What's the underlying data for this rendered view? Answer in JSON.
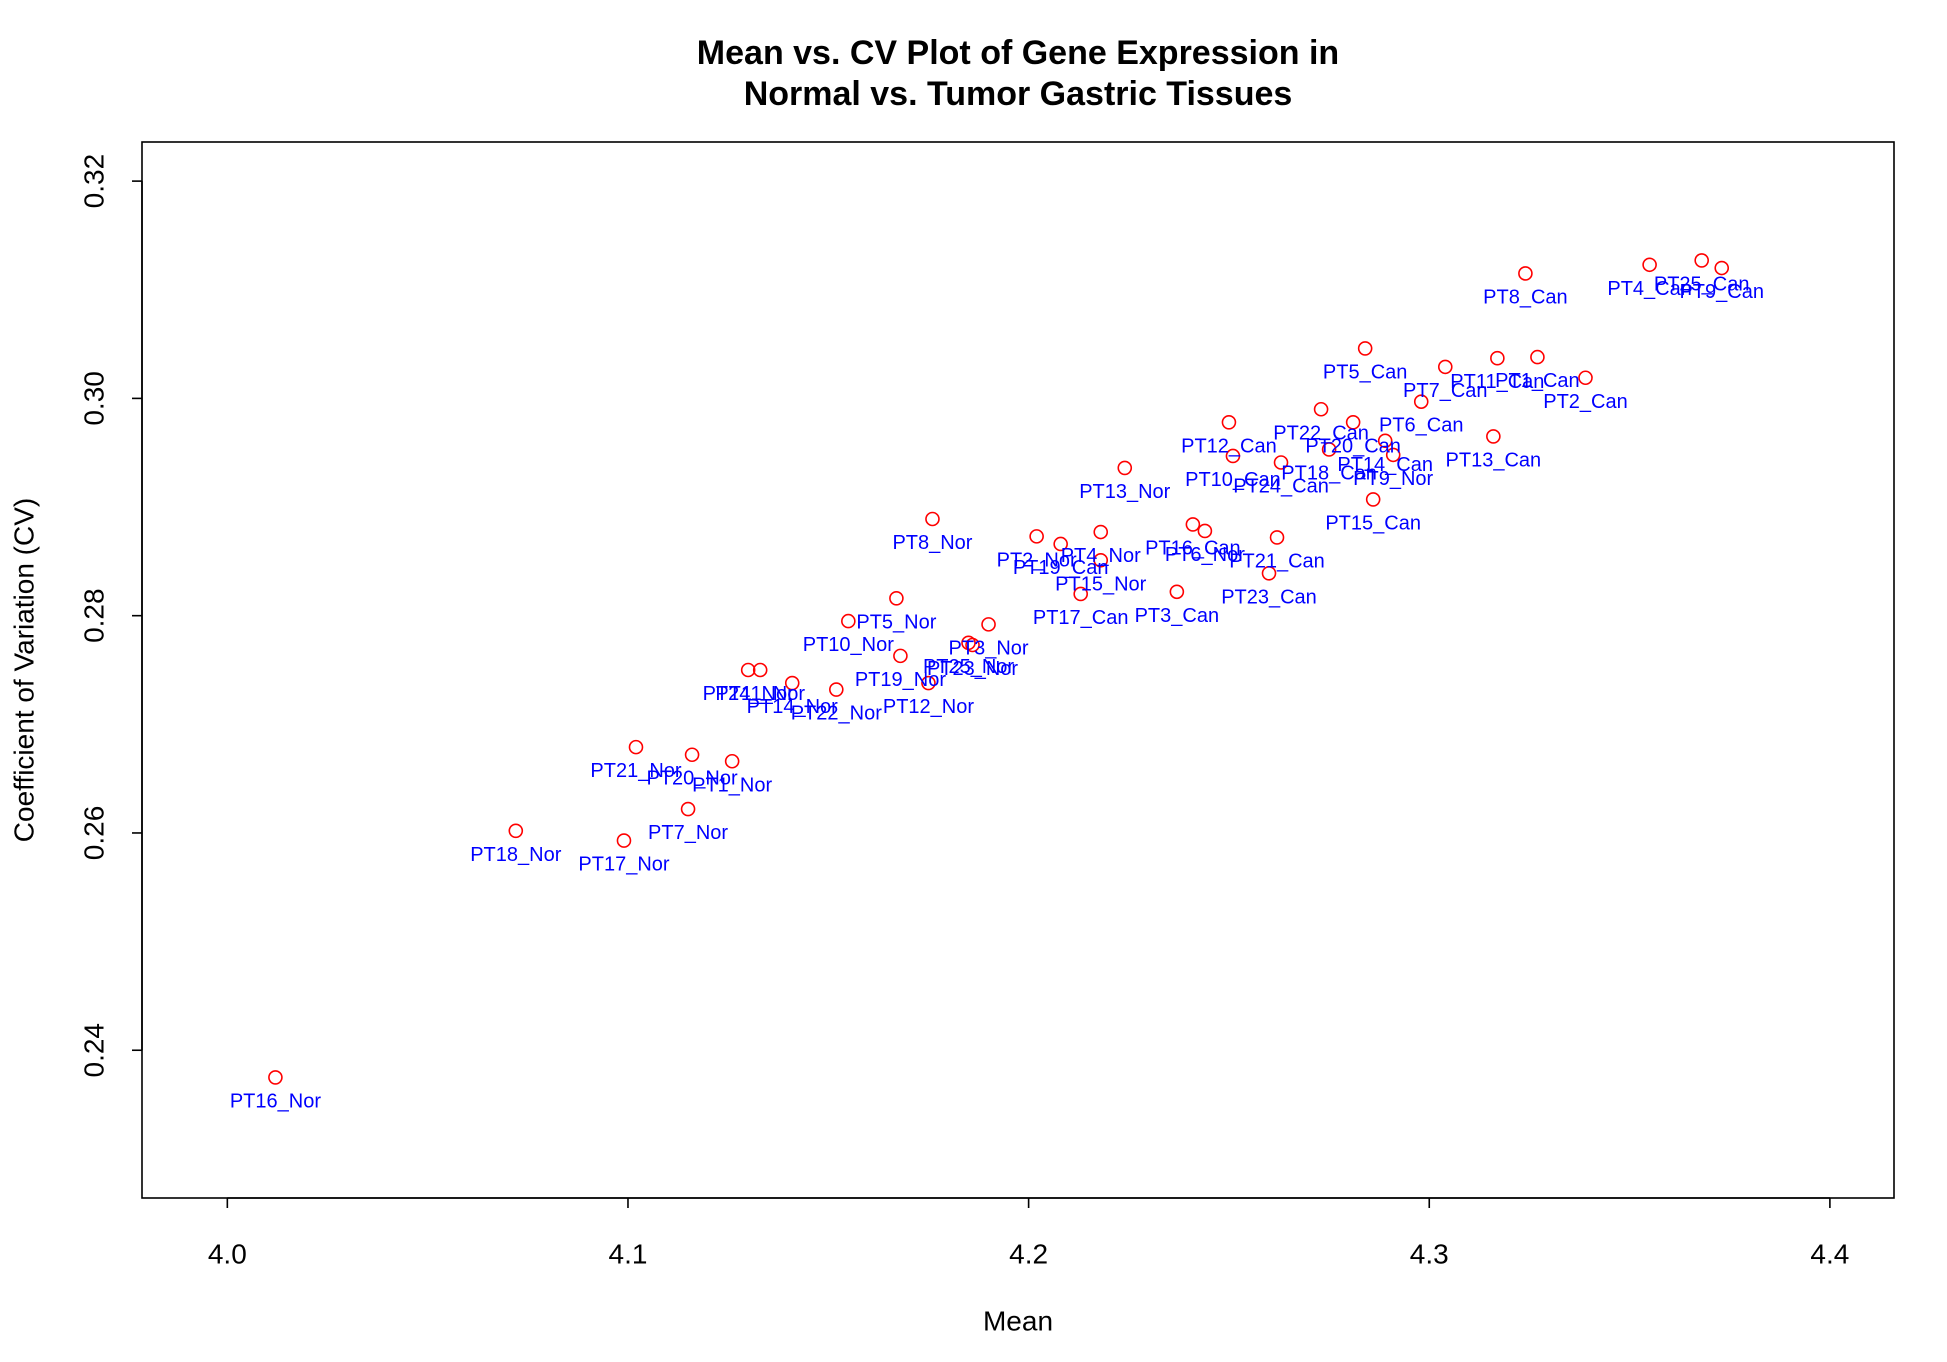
{
  "chart_data": {
    "type": "scatter",
    "title_lines": [
      "Mean vs. CV Plot of Gene Expression in",
      "Normal vs. Tumor Gastric Tissues"
    ],
    "xlabel": "Mean",
    "ylabel": "Coefficient of Variation (CV)",
    "xlim": [
      3.9787,
      4.416
    ],
    "ylim": [
      0.2264,
      0.3236
    ],
    "xticks": [
      4.0,
      4.1,
      4.2,
      4.3,
      4.4
    ],
    "xtick_labels": [
      "4.0",
      "4.1",
      "4.2",
      "4.3",
      "4.4"
    ],
    "yticks": [
      0.24,
      0.26,
      0.28,
      0.3,
      0.32
    ],
    "ytick_labels": [
      "0.24",
      "0.26",
      "0.28",
      "0.30",
      "0.32"
    ],
    "grid": false,
    "legend": "none",
    "marker": "open-circle",
    "point_color": "#ff0000",
    "label_color": "#0000ff",
    "points": [
      {
        "label": "PT1_Nor",
        "x": 4.126,
        "y": 0.2666
      },
      {
        "label": "PT2_Nor",
        "x": 4.202,
        "y": 0.2873
      },
      {
        "label": "PT3_Nor",
        "x": 4.19,
        "y": 0.2792
      },
      {
        "label": "PT4_Nor",
        "x": 4.218,
        "y": 0.2877
      },
      {
        "label": "PT5_Nor",
        "x": 4.167,
        "y": 0.2816
      },
      {
        "label": "PT6_Nor",
        "x": 4.244,
        "y": 0.2878
      },
      {
        "label": "PT7_Nor",
        "x": 4.115,
        "y": 0.2622
      },
      {
        "label": "PT8_Nor",
        "x": 4.176,
        "y": 0.2889
      },
      {
        "label": "PT9_Nor",
        "x": 4.291,
        "y": 0.2948
      },
      {
        "label": "PT10_Nor",
        "x": 4.155,
        "y": 0.2795
      },
      {
        "label": "PT11_Nor",
        "x": 4.133,
        "y": 0.275
      },
      {
        "label": "PT12_Nor",
        "x": 4.175,
        "y": 0.2738
      },
      {
        "label": "PT13_Nor",
        "x": 4.224,
        "y": 0.2936
      },
      {
        "label": "PT14_Nor",
        "x": 4.141,
        "y": 0.2738
      },
      {
        "label": "PT15_Nor",
        "x": 4.218,
        "y": 0.2851
      },
      {
        "label": "PT16_Nor",
        "x": 4.012,
        "y": 0.2375
      },
      {
        "label": "PT17_Nor",
        "x": 4.099,
        "y": 0.2593
      },
      {
        "label": "PT18_Nor",
        "x": 4.072,
        "y": 0.2602
      },
      {
        "label": "PT19_Nor",
        "x": 4.168,
        "y": 0.2763
      },
      {
        "label": "PT20_Nor",
        "x": 4.116,
        "y": 0.2672
      },
      {
        "label": "PT21_Nor",
        "x": 4.102,
        "y": 0.2679
      },
      {
        "label": "PT22_Nor",
        "x": 4.152,
        "y": 0.2732
      },
      {
        "label": "PT23_Nor",
        "x": 4.186,
        "y": 0.2773
      },
      {
        "label": "PT24_Nor",
        "x": 4.13,
        "y": 0.275
      },
      {
        "label": "PT25_Nor",
        "x": 4.185,
        "y": 0.2775
      },
      {
        "label": "PT1_Can",
        "x": 4.327,
        "y": 0.3038
      },
      {
        "label": "PT2_Can",
        "x": 4.339,
        "y": 0.3019
      },
      {
        "label": "PT3_Can",
        "x": 4.237,
        "y": 0.2822
      },
      {
        "label": "PT4_Can",
        "x": 4.355,
        "y": 0.3123
      },
      {
        "label": "PT5_Can",
        "x": 4.284,
        "y": 0.3046
      },
      {
        "label": "PT6_Can",
        "x": 4.298,
        "y": 0.2997
      },
      {
        "label": "PT7_Can",
        "x": 4.304,
        "y": 0.3029
      },
      {
        "label": "PT8_Can",
        "x": 4.324,
        "y": 0.3115
      },
      {
        "label": "PT9_Can",
        "x": 4.373,
        "y": 0.312
      },
      {
        "label": "PT10_Can",
        "x": 4.251,
        "y": 0.2947
      },
      {
        "label": "PT11_Can",
        "x": 4.317,
        "y": 0.3037
      },
      {
        "label": "PT12_Can",
        "x": 4.25,
        "y": 0.2978
      },
      {
        "label": "PT13_Can",
        "x": 4.316,
        "y": 0.2965
      },
      {
        "label": "PT14_Can",
        "x": 4.289,
        "y": 0.2961
      },
      {
        "label": "PT15_Can",
        "x": 4.286,
        "y": 0.2907
      },
      {
        "label": "PT16_Can",
        "x": 4.241,
        "y": 0.2884
      },
      {
        "label": "PT17_Can",
        "x": 4.213,
        "y": 0.282
      },
      {
        "label": "PT18_Can",
        "x": 4.275,
        "y": 0.2953
      },
      {
        "label": "PT19_Can",
        "x": 4.208,
        "y": 0.2866
      },
      {
        "label": "PT20_Can",
        "x": 4.281,
        "y": 0.2978
      },
      {
        "label": "PT21_Can",
        "x": 4.262,
        "y": 0.2872
      },
      {
        "label": "PT22_Can",
        "x": 4.273,
        "y": 0.299
      },
      {
        "label": "PT23_Can",
        "x": 4.26,
        "y": 0.2839
      },
      {
        "label": "PT24_Can",
        "x": 4.263,
        "y": 0.2941
      },
      {
        "label": "PT25_Can",
        "x": 4.368,
        "y": 0.3127
      }
    ]
  }
}
